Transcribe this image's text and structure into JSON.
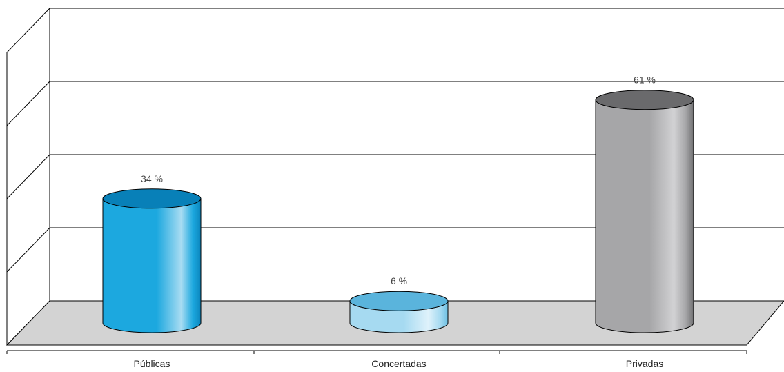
{
  "chart_data": {
    "type": "bar",
    "style": "3d-cylinder",
    "categories": [
      "Públicas",
      "Concertadas",
      "Privadas"
    ],
    "values": [
      34,
      6,
      61
    ],
    "value_labels": [
      "34 %",
      "6 %",
      "61 %"
    ],
    "unit": "%",
    "ylim": [
      0,
      80
    ],
    "y_gridlines": [
      0,
      20,
      40,
      60,
      80
    ],
    "grid": true,
    "legend": "none",
    "title": "",
    "xlabel": "",
    "ylabel": "",
    "colors": {
      "Públicas": {
        "light": "#a8dcf2",
        "mid": "#1ca8df",
        "dark": "#0b86bd",
        "top": "#0880b8"
      },
      "Concertadas": {
        "light": "#dff2fb",
        "mid": "#a6daf1",
        "dark": "#6ec0e3",
        "top": "#5ab4dc"
      },
      "Privadas": {
        "light": "#d2d2d4",
        "mid": "#a6a6a8",
        "dark": "#707072",
        "top": "#6a6a6c"
      },
      "floor": "#d3d3d3"
    }
  }
}
